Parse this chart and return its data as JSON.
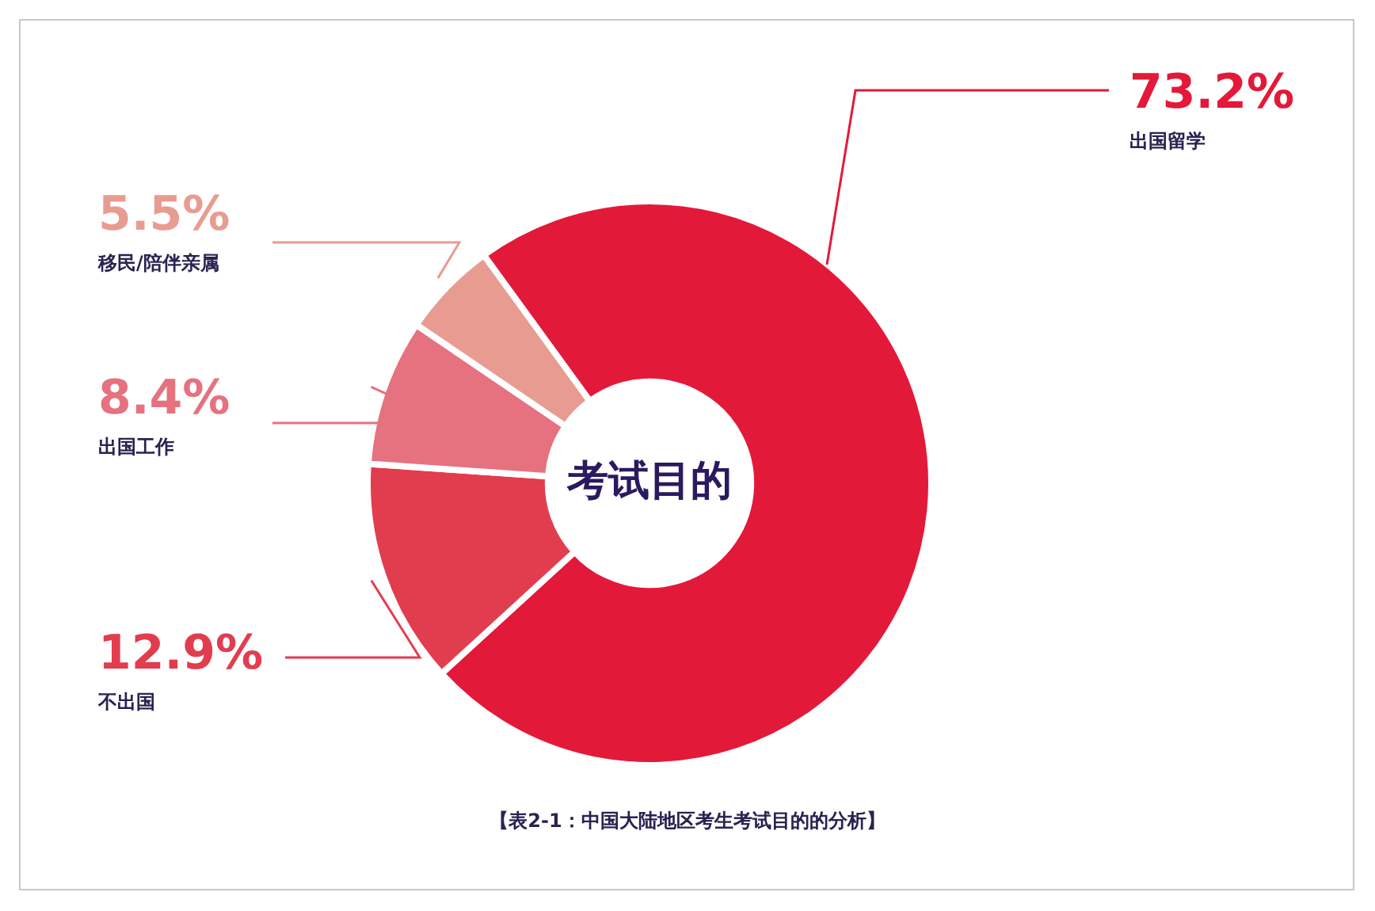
{
  "chart_data": {
    "type": "donut",
    "title": "考试目的",
    "categories": [
      "出国留学",
      "不出国",
      "出国工作",
      "移民/陪伴亲属"
    ],
    "values": [
      73.2,
      12.9,
      8.4,
      5.5
    ],
    "value_labels": [
      "73.2%",
      "12.9%",
      "8.4%",
      "5.5%"
    ],
    "colors": [
      "#e3193a",
      "#e23d4f",
      "#e5727e",
      "#e89c91"
    ],
    "legend": false,
    "annotations": [
      "【表2-1：中国大陆地区考生考试目的的分析】"
    ]
  }
}
